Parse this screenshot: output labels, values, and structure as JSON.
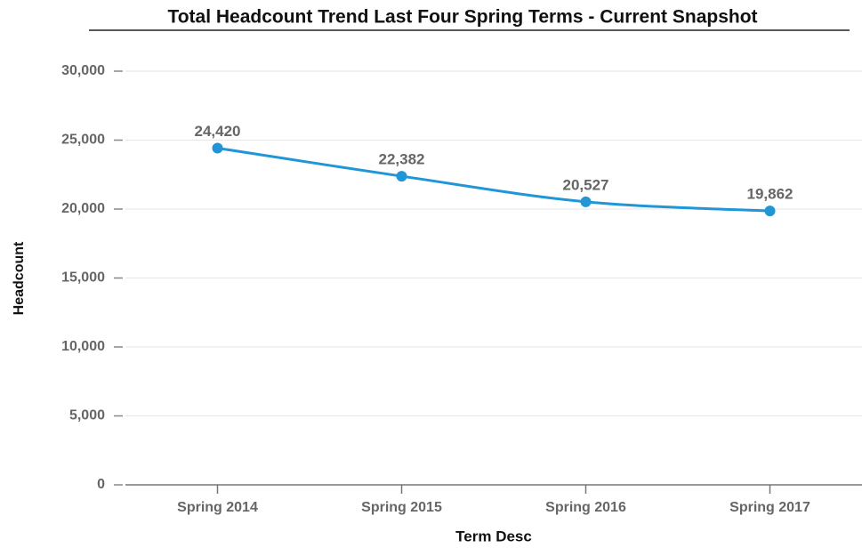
{
  "chart_data": {
    "type": "line",
    "title": "Total Headcount Trend Last Four Spring Terms - Current Snapshot",
    "x_label": "Term Desc",
    "y_label": "Headcount",
    "categories": [
      "Spring 2014",
      "Spring 2015",
      "Spring 2016",
      "Spring 2017"
    ],
    "series": [
      {
        "name": "Headcount",
        "color": "#2196d6",
        "values": [
          24420,
          22382,
          20527,
          19862
        ],
        "value_labels": [
          "24,420",
          "22,382",
          "20,527",
          "19,862"
        ]
      }
    ],
    "ylim": [
      0,
      30000
    ],
    "yticks": [
      0,
      {
        "value": 5000,
        "label": "5,000"
      },
      {
        "value": 10000,
        "label": "10,000"
      },
      {
        "value": 15000,
        "label": "15,000"
      },
      {
        "value": 20000,
        "label": "20,000"
      },
      {
        "value": 25000,
        "label": "25,000"
      },
      {
        "value": 30000,
        "label": "30,000"
      }
    ],
    "grid": true
  }
}
